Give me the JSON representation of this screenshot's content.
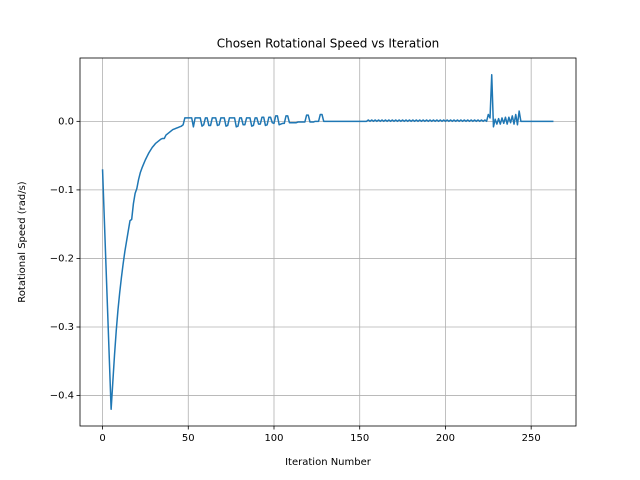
{
  "chart_data": {
    "type": "line",
    "title": "Chosen Rotational Speed vs Iteration",
    "xlabel": "Iteration Number",
    "ylabel": "Rotational Speed (rad/s)",
    "grid": true,
    "xlim": [
      -13.15,
      276.15
    ],
    "ylim": [
      -0.4444,
      0.0924
    ],
    "xticks": [
      0,
      50,
      100,
      150,
      200,
      250
    ],
    "yticks": [
      {
        "value": -0.4,
        "label": "−0.4"
      },
      {
        "value": -0.3,
        "label": "−0.3"
      },
      {
        "value": -0.2,
        "label": "−0.2"
      },
      {
        "value": -0.1,
        "label": "−0.1"
      },
      {
        "value": 0,
        "label": "0.0"
      }
    ],
    "x": [
      0,
      1,
      2,
      3,
      4,
      5,
      6,
      7,
      8,
      9,
      10,
      11,
      12,
      13,
      14,
      15,
      16,
      17,
      18,
      19,
      20,
      21,
      22,
      23,
      24,
      25,
      26,
      27,
      28,
      29,
      30,
      31,
      32,
      33,
      34,
      35,
      36,
      37,
      38,
      39,
      40,
      41,
      42,
      43,
      44,
      45,
      46,
      47,
      48,
      49,
      50,
      51,
      52,
      53,
      54,
      55,
      56,
      57,
      58,
      59,
      60,
      61,
      62,
      63,
      64,
      65,
      66,
      67,
      68,
      69,
      70,
      71,
      72,
      73,
      74,
      75,
      76,
      77,
      78,
      79,
      80,
      81,
      82,
      83,
      84,
      85,
      86,
      87,
      88,
      89,
      90,
      91,
      92,
      93,
      94,
      95,
      96,
      97,
      98,
      99,
      100,
      101,
      102,
      103,
      104,
      105,
      106,
      107,
      108,
      109,
      110,
      111,
      112,
      113,
      114,
      115,
      116,
      117,
      118,
      119,
      120,
      121,
      122,
      123,
      124,
      125,
      126,
      127,
      128,
      129,
      130,
      131,
      132,
      133,
      134,
      135,
      136,
      137,
      138,
      139,
      140,
      141,
      142,
      143,
      144,
      145,
      146,
      147,
      148,
      149,
      150,
      151,
      152,
      153,
      154,
      155,
      156,
      157,
      158,
      159,
      160,
      161,
      162,
      163,
      164,
      165,
      166,
      167,
      168,
      169,
      170,
      171,
      172,
      173,
      174,
      175,
      176,
      177,
      178,
      179,
      180,
      181,
      182,
      183,
      184,
      185,
      186,
      187,
      188,
      189,
      190,
      191,
      192,
      193,
      194,
      195,
      196,
      197,
      198,
      199,
      200,
      201,
      202,
      203,
      204,
      205,
      206,
      207,
      208,
      209,
      210,
      211,
      212,
      213,
      214,
      215,
      216,
      217,
      218,
      219,
      220,
      221,
      222,
      223,
      224,
      225,
      226,
      227,
      228,
      229,
      230,
      231,
      232,
      233,
      234,
      235,
      236,
      237,
      238,
      239,
      240,
      241,
      242,
      243,
      244,
      245,
      246,
      247,
      248,
      249,
      250,
      251,
      252,
      253,
      254,
      255,
      256,
      257,
      258,
      259,
      260,
      261,
      262,
      263
    ],
    "series": [
      {
        "color": "#1f77b4",
        "values": [
          -0.07,
          -0.14,
          -0.21,
          -0.28,
          -0.35,
          -0.42,
          -0.38,
          -0.34,
          -0.305,
          -0.275,
          -0.25,
          -0.228,
          -0.208,
          -0.19,
          -0.175,
          -0.16,
          -0.145,
          -0.143,
          -0.12,
          -0.105,
          -0.098,
          -0.085,
          -0.075,
          -0.068,
          -0.062,
          -0.056,
          -0.051,
          -0.046,
          -0.042,
          -0.038,
          -0.035,
          -0.032,
          -0.03,
          -0.028,
          -0.026,
          -0.025,
          -0.025,
          -0.02,
          -0.018,
          -0.016,
          -0.014,
          -0.012,
          -0.011,
          -0.01,
          -0.009,
          -0.008,
          -0.007,
          -0.005,
          0.005,
          0.005,
          0.005,
          0.005,
          0.005,
          -0.008,
          0.005,
          0.005,
          0.005,
          0.005,
          -0.007,
          -0.005,
          0.005,
          0.005,
          -0.006,
          -0.006,
          0.005,
          0.005,
          0.005,
          -0.006,
          -0.005,
          0.005,
          0.005,
          0.005,
          -0.007,
          -0.006,
          0.005,
          0.005,
          0.005,
          0.005,
          -0.008,
          -0.007,
          0.005,
          0.005,
          -0.005,
          -0.005,
          0.005,
          0.005,
          0.005,
          -0.007,
          -0.006,
          0.005,
          0.005,
          -0.004,
          -0.004,
          0.006,
          0.006,
          -0.006,
          -0.005,
          0.006,
          0.006,
          -0.002,
          -0.003,
          0.008,
          0.008,
          -0.005,
          -0.004,
          -0.003,
          -0.003,
          0.008,
          0.008,
          -0.002,
          -0.002,
          -0.002,
          -0.002,
          -0.002,
          -0.001,
          -0.001,
          -0.001,
          -0.001,
          -0.001,
          0.009,
          0.009,
          -0.001,
          -0.001,
          -0.001,
          0,
          0,
          0,
          0.01,
          0.01,
          0,
          0,
          0,
          0,
          0,
          0,
          0,
          0,
          0,
          0,
          0,
          0,
          0,
          0,
          0,
          0,
          0,
          0,
          0,
          0,
          0,
          0,
          0,
          0,
          0,
          0,
          0.002,
          0,
          0.002,
          0,
          0.002,
          0,
          0.002,
          0,
          0.002,
          0,
          0.002,
          0,
          0.002,
          0,
          0.002,
          0,
          0.002,
          0,
          0.002,
          0,
          0.002,
          0,
          0.002,
          0,
          0.002,
          0,
          0.002,
          0,
          0.002,
          0,
          0.002,
          0,
          0.002,
          0,
          0.002,
          0,
          0.002,
          0,
          0.002,
          0,
          0.002,
          0,
          0.002,
          0,
          0.002,
          0,
          0.002,
          0,
          0.002,
          0,
          0.002,
          0,
          0.002,
          0,
          0.002,
          0,
          0.002,
          0,
          0.002,
          0,
          0.002,
          0,
          0.002,
          0,
          0.002,
          0,
          0.002,
          0,
          0.002,
          0,
          0.01,
          0.005,
          0.068,
          -0.008,
          0.003,
          -0.004,
          0.004,
          -0.004,
          0.005,
          -0.003,
          0.006,
          -0.004,
          0.006,
          -0.002,
          0.008,
          -0.004,
          0.01,
          -0.005,
          0.015,
          0,
          0,
          0,
          0,
          0,
          0,
          0,
          0,
          0,
          0,
          0,
          0,
          0,
          0,
          0,
          0,
          0,
          0,
          0,
          0
        ]
      }
    ]
  }
}
